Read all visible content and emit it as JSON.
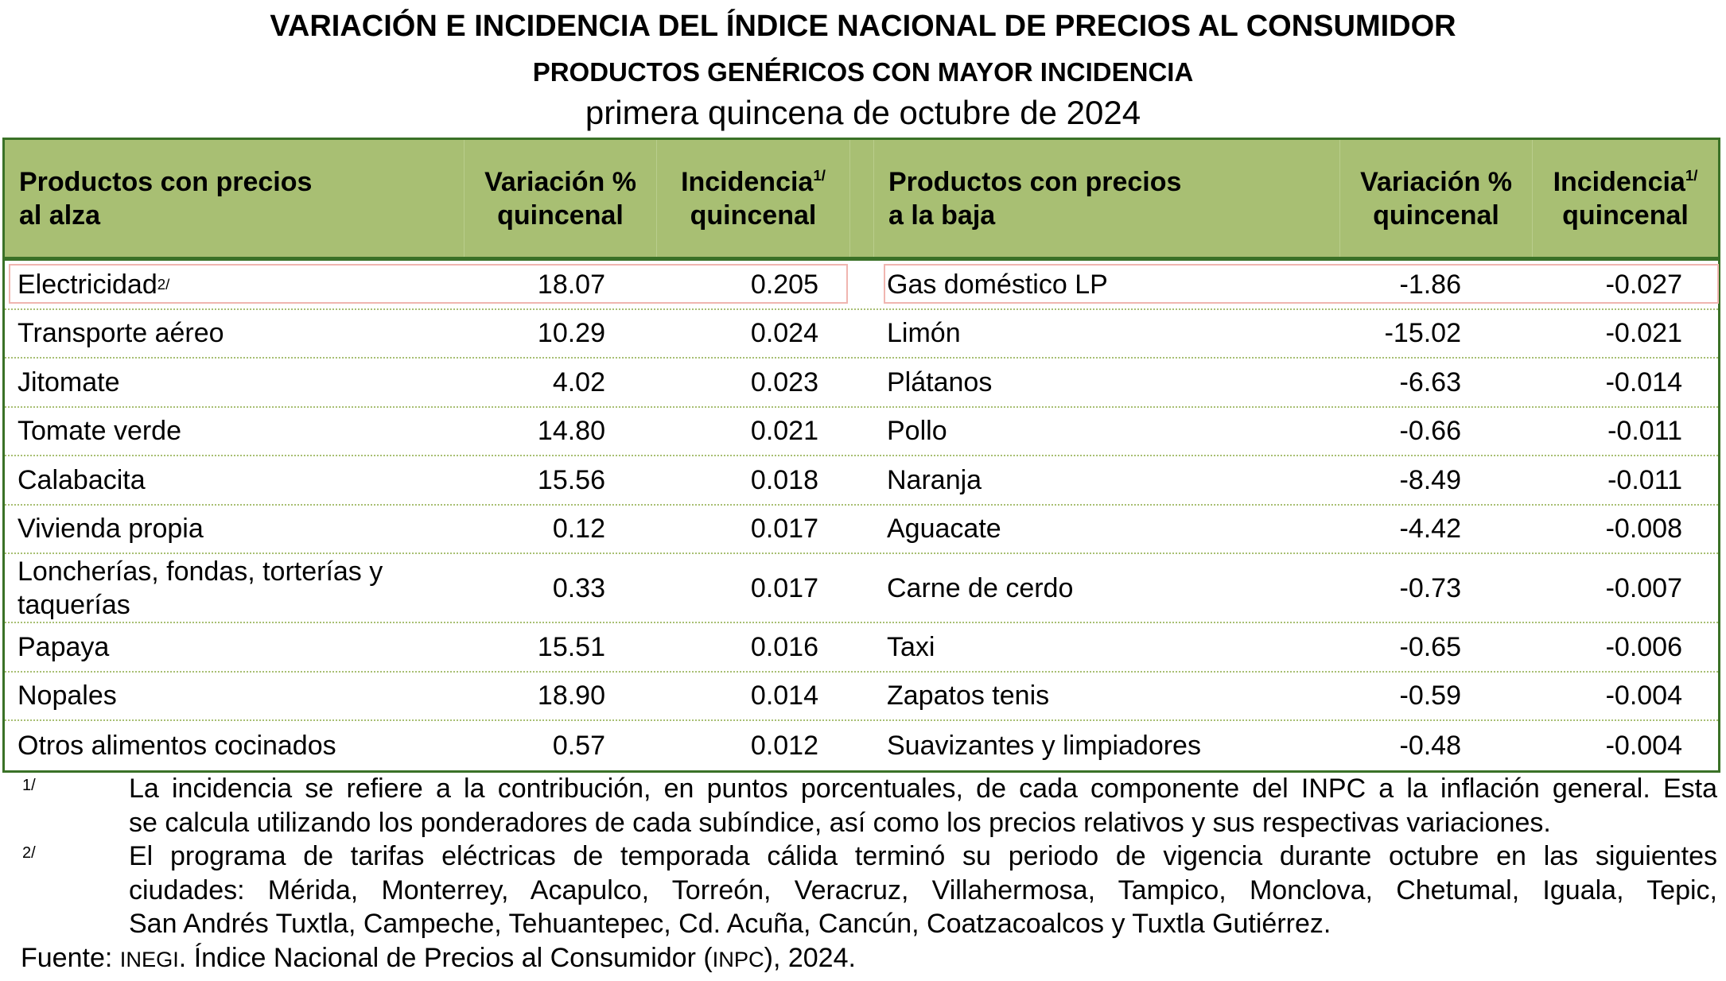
{
  "title": "VARIACIÓN E INCIDENCIA DEL ÍNDICE NACIONAL DE PRECIOS AL CONSUMIDOR",
  "subtitle": "PRODUCTOS GENÉRICOS CON MAYOR INCIDENCIA",
  "period": "primera quincena de octubre de 2024",
  "header": {
    "up_products": "Productos con precios al alza",
    "variation": "Variación % quincenal",
    "incidence": "Incidencia",
    "incidence_sup": "1/",
    "incidence_sub": "quincenal",
    "down_products": "Productos con precios a la baja"
  },
  "colors": {
    "header_bg": "#a8bf73",
    "border": "#3a7127",
    "highlight": "#f0b5b0"
  },
  "rows": [
    {
      "up": "Electricidad",
      "up_sup": "2/",
      "up_var": "18.07",
      "up_inc": "0.205",
      "down": "Gas doméstico LP",
      "down_var": "-1.86",
      "down_inc": "-0.027"
    },
    {
      "up": "Transporte aéreo",
      "up_var": "10.29",
      "up_inc": "0.024",
      "down": "Limón",
      "down_var": "-15.02",
      "down_inc": "-0.021"
    },
    {
      "up": "Jitomate",
      "up_var": "4.02",
      "up_inc": "0.023",
      "down": "Plátanos",
      "down_var": "-6.63",
      "down_inc": "-0.014"
    },
    {
      "up": "Tomate verde",
      "up_var": "14.80",
      "up_inc": "0.021",
      "down": "Pollo",
      "down_var": "-0.66",
      "down_inc": "-0.011"
    },
    {
      "up": "Calabacita",
      "up_var": "15.56",
      "up_inc": "0.018",
      "down": "Naranja",
      "down_var": "-8.49",
      "down_inc": "-0.011"
    },
    {
      "up": "Vivienda propia",
      "up_var": "0.12",
      "up_inc": "0.017",
      "down": "Aguacate",
      "down_var": "-4.42",
      "down_inc": "-0.008"
    },
    {
      "up": "Loncherías, fondas, torterías y taquerías",
      "up_var": "0.33",
      "up_inc": "0.017",
      "down": "Carne de cerdo",
      "down_var": "-0.73",
      "down_inc": "-0.007"
    },
    {
      "up": "Papaya",
      "up_var": "15.51",
      "up_inc": "0.016",
      "down": "Taxi",
      "down_var": "-0.65",
      "down_inc": "-0.006"
    },
    {
      "up": "Nopales",
      "up_var": "18.90",
      "up_inc": "0.014",
      "down": "Zapatos tenis",
      "down_var": "-0.59",
      "down_inc": "-0.004"
    },
    {
      "up": "Otros alimentos cocinados",
      "up_var": "0.57",
      "up_inc": "0.012",
      "down": "Suavizantes y limpiadores",
      "down_var": "-0.48",
      "down_inc": "-0.004"
    }
  ],
  "footnotes": [
    {
      "mark": "1/",
      "lines": [
        "La incidencia se refiere a la contribución, en puntos porcentuales, de cada componente del INPC a la inflación general. Esta",
        "se calcula utilizando los ponderadores de cada subíndice, así como los precios relativos y sus respectivas variaciones."
      ]
    },
    {
      "mark": "2/",
      "lines": [
        "El programa de tarifas eléctricas de temporada cálida terminó su periodo de vigencia durante octubre en las siguientes",
        "ciudades: Mérida, Monterrey, Acapulco, Torreón, Veracruz, Villahermosa, Tampico, Monclova, Chetumal, Iguala, Tepic,",
        "San Andrés Tuxtla, Campeche, Tehuantepec, Cd. Acuña, Cancún, Coatzacoalcos y Tuxtla Gutiérrez."
      ]
    }
  ],
  "source": {
    "label": "Fuente:",
    "org": "INEGI",
    "text1": ". Índice Nacional de Precios al Consumidor (",
    "abbr": "INPC",
    "text2": "), 2024."
  }
}
